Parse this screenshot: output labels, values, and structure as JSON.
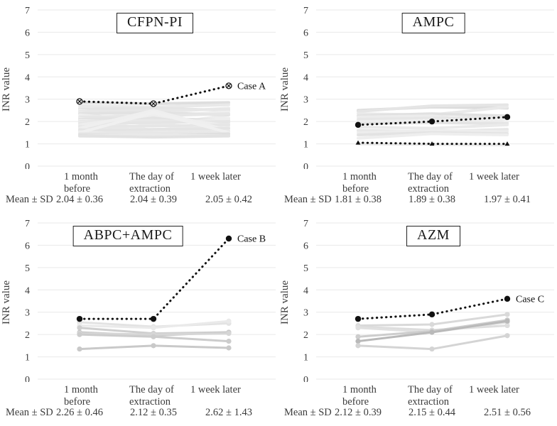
{
  "axis": {
    "yticks": [
      "0",
      "1",
      "2",
      "3",
      "4",
      "5",
      "6",
      "7"
    ],
    "ylim": [
      0,
      7
    ],
    "grid_color": "#e9e9e9",
    "highlight_color": "#111111"
  },
  "chart_data": [
    {
      "type": "line",
      "title": "CFPN-PI",
      "ylabel": "INR value",
      "ylim": [
        0,
        7
      ],
      "categories": [
        [
          "1 month",
          "before"
        ],
        [
          "The day of",
          "extraction"
        ],
        [
          "1 week later"
        ]
      ],
      "mean_sd_label": "Mean ± SD",
      "mean_sd": [
        "2.04 ± 0.36",
        "2.04 ± 0.39",
        "2.05 ± 0.42"
      ],
      "highlights": [
        {
          "name": "Case A",
          "values": [
            2.9,
            2.8,
            3.6
          ],
          "marker": "circle-x",
          "annotation": "Case A"
        }
      ],
      "bg_markers": false,
      "bg_width": 4,
      "background": [
        {
          "v": [
            2.85,
            2.8,
            2.85
          ],
          "c": "#dedede"
        },
        {
          "v": [
            2.7,
            2.65,
            2.75
          ],
          "c": "#e9e9e9"
        },
        {
          "v": [
            2.6,
            2.4,
            2.6
          ],
          "c": "#ececec"
        },
        {
          "v": [
            2.55,
            2.6,
            2.5
          ],
          "c": "#e4e4e4"
        },
        {
          "v": [
            2.5,
            2.2,
            2.45
          ],
          "c": "#efefef"
        },
        {
          "v": [
            2.45,
            2.5,
            2.55
          ],
          "c": "#e7e7e7"
        },
        {
          "v": [
            2.4,
            1.8,
            2.3
          ],
          "c": "#ececec"
        },
        {
          "v": [
            2.35,
            2.4,
            2.3
          ],
          "c": "#e2e2e2"
        },
        {
          "v": [
            2.3,
            2.0,
            2.15
          ],
          "c": "#eeeeee"
        },
        {
          "v": [
            2.2,
            2.25,
            2.35
          ],
          "c": "#e6e6e6"
        },
        {
          "v": [
            2.15,
            1.6,
            2.0
          ],
          "c": "#ededed"
        },
        {
          "v": [
            2.1,
            2.15,
            2.05
          ],
          "c": "#e3e3e3"
        },
        {
          "v": [
            2.05,
            1.9,
            2.1
          ],
          "c": "#eeeeee"
        },
        {
          "v": [
            2.0,
            2.05,
            1.95
          ],
          "c": "#e8e8e8"
        },
        {
          "v": [
            1.95,
            1.5,
            1.85
          ],
          "c": "#ececec"
        },
        {
          "v": [
            1.9,
            1.95,
            2.0
          ],
          "c": "#e5e5e5"
        },
        {
          "v": [
            1.85,
            2.3,
            1.8
          ],
          "c": "#eeeeee"
        },
        {
          "v": [
            1.8,
            1.45,
            1.7
          ],
          "c": "#e9e9e9"
        },
        {
          "v": [
            1.75,
            1.8,
            1.85
          ],
          "c": "#e6e6e6"
        },
        {
          "v": [
            1.7,
            2.5,
            1.6
          ],
          "c": "#efefef"
        },
        {
          "v": [
            1.65,
            1.4,
            1.55
          ],
          "c": "#e8e8e8"
        },
        {
          "v": [
            1.6,
            1.65,
            1.7
          ],
          "c": "#e4e4e4"
        },
        {
          "v": [
            1.55,
            1.35,
            1.45
          ],
          "c": "#ececec"
        },
        {
          "v": [
            1.5,
            2.4,
            1.5
          ],
          "c": "#f0f0f0"
        },
        {
          "v": [
            1.45,
            1.5,
            1.4
          ],
          "c": "#e7e7e7"
        },
        {
          "v": [
            1.4,
            1.35,
            1.45
          ],
          "c": "#dfdfdf"
        },
        {
          "v": [
            1.35,
            1.4,
            1.35
          ],
          "c": "#e9e9e9"
        },
        {
          "v": [
            1.35,
            1.3,
            1.35
          ],
          "c": "#e2e2e2"
        }
      ]
    },
    {
      "type": "line",
      "title": "AMPC",
      "ylabel": "INR value",
      "ylim": [
        0,
        7
      ],
      "categories": [
        [
          "1 month",
          "before"
        ],
        [
          "The day of",
          "extraction"
        ],
        [
          "1 week later"
        ]
      ],
      "mean_sd_label": "Mean ± SD",
      "mean_sd": [
        "1.81 ± 0.38",
        "1.89 ± 0.38",
        "1.97 ± 0.41"
      ],
      "highlights": [
        {
          "name": "",
          "values": [
            1.85,
            2.0,
            2.2
          ],
          "marker": "dot",
          "annotation": ""
        },
        {
          "name": "",
          "values": [
            1.05,
            1.0,
            1.0
          ],
          "marker": "triangle",
          "annotation": ""
        }
      ],
      "bg_markers": false,
      "bg_width": 4,
      "background": [
        {
          "v": [
            2.5,
            2.65,
            2.6
          ],
          "c": "#dcdcdc"
        },
        {
          "v": [
            2.45,
            2.7,
            2.75
          ],
          "c": "#e5e5e5"
        },
        {
          "v": [
            2.35,
            2.3,
            2.65
          ],
          "c": "#e9e9e9"
        },
        {
          "v": [
            2.25,
            2.35,
            2.25
          ],
          "c": "#e1e1e1"
        },
        {
          "v": [
            2.2,
            2.25,
            1.95
          ],
          "c": "#ececec"
        },
        {
          "v": [
            2.1,
            2.15,
            2.2
          ],
          "c": "#e6e6e6"
        },
        {
          "v": [
            2.0,
            2.05,
            2.1
          ],
          "c": "#eeeeee"
        },
        {
          "v": [
            1.9,
            1.95,
            1.9
          ],
          "c": "#e4e4e4"
        },
        {
          "v": [
            1.75,
            1.7,
            1.85
          ],
          "c": "#eaeaea"
        },
        {
          "v": [
            1.6,
            1.55,
            1.65
          ],
          "c": "#e7e7e7"
        },
        {
          "v": [
            1.5,
            1.6,
            1.55
          ],
          "c": "#ededed"
        },
        {
          "v": [
            1.4,
            1.5,
            1.45
          ],
          "c": "#e3e3e3"
        },
        {
          "v": [
            1.25,
            1.45,
            1.4
          ],
          "c": "#eeeeee"
        },
        {
          "v": [
            1.0,
            0.98,
            0.95
          ],
          "c": "#e8e8e8"
        }
      ]
    },
    {
      "type": "line",
      "title": "ABPC+AMPC",
      "ylabel": "INR value",
      "ylim": [
        0,
        7
      ],
      "categories": [
        [
          "1 month",
          "before"
        ],
        [
          "The day of",
          "extraction"
        ],
        [
          "1 week later"
        ]
      ],
      "mean_sd_label": "Mean ± SD",
      "mean_sd": [
        "2.26 ± 0.46",
        "2.12 ± 0.35",
        "2.62 ± 1.43"
      ],
      "highlights": [
        {
          "name": "Case B",
          "values": [
            2.7,
            2.7,
            6.3
          ],
          "marker": "dot",
          "annotation": "Case B"
        }
      ],
      "bg_markers": true,
      "bg_width": 3,
      "background": [
        {
          "v": [
            2.55,
            2.35,
            2.5
          ],
          "c": "#e3e3e3"
        },
        {
          "v": [
            2.4,
            2.3,
            2.6
          ],
          "c": "#eaeaea"
        },
        {
          "v": [
            2.3,
            2.05,
            2.1
          ],
          "c": "#cfcfcf"
        },
        {
          "v": [
            2.1,
            1.95,
            2.1
          ],
          "c": "#c8c8c8"
        },
        {
          "v": [
            2.05,
            2.0,
            2.05
          ],
          "c": "#d6d6d6"
        },
        {
          "v": [
            2.0,
            1.9,
            1.7
          ],
          "c": "#cccccc"
        },
        {
          "v": [
            1.35,
            1.5,
            1.4
          ],
          "c": "#c9c9c9"
        }
      ]
    },
    {
      "type": "line",
      "title": "AZM",
      "ylabel": "INR value",
      "ylim": [
        0,
        7
      ],
      "categories": [
        [
          "1 month",
          "before"
        ],
        [
          "The day of",
          "extraction"
        ],
        [
          "1 week later"
        ]
      ],
      "mean_sd_label": "Mean ± SD",
      "mean_sd": [
        "2.12 ± 0.39",
        "2.15 ± 0.44",
        "2.51 ± 0.56"
      ],
      "highlights": [
        {
          "name": "Case C",
          "values": [
            2.7,
            2.9,
            3.6
          ],
          "marker": "dot",
          "annotation": "Case C"
        }
      ],
      "bg_markers": true,
      "bg_width": 3,
      "background": [
        {
          "v": [
            2.4,
            2.45,
            2.9
          ],
          "c": "#d9d9d9"
        },
        {
          "v": [
            2.35,
            2.2,
            2.4
          ],
          "c": "#dddddd"
        },
        {
          "v": [
            2.3,
            2.1,
            2.55
          ],
          "c": "#e1e1e1"
        },
        {
          "v": [
            1.9,
            2.15,
            2.65
          ],
          "c": "#cdcdcd"
        },
        {
          "v": [
            1.7,
            2.1,
            2.6
          ],
          "c": "#b9b9b9"
        },
        {
          "v": [
            1.5,
            1.35,
            1.95
          ],
          "c": "#d4d4d4"
        }
      ]
    }
  ]
}
